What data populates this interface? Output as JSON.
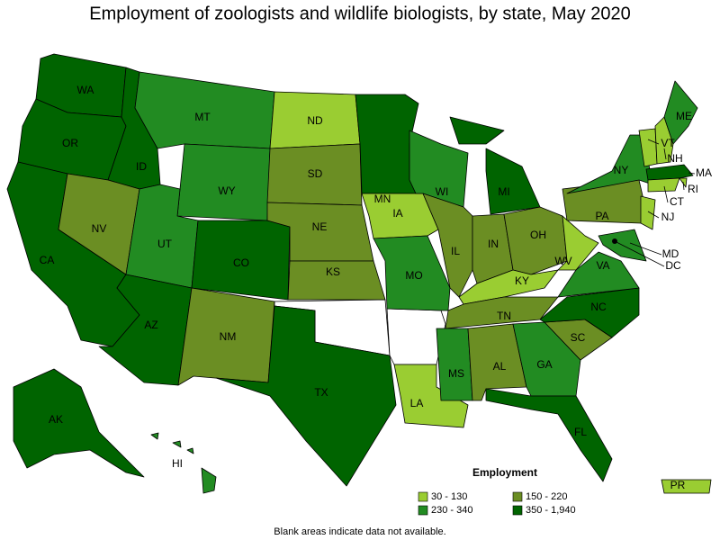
{
  "title": "Employment of zoologists and wildlife biologists, by state, May 2020",
  "legend": {
    "title": "Employment",
    "items": [
      {
        "label": "30 - 130",
        "color": "#9acd32"
      },
      {
        "label": "150 - 220",
        "color": "#6b8e23"
      },
      {
        "label": "230 - 340",
        "color": "#228b22"
      },
      {
        "label": "350 - 1,940",
        "color": "#006400"
      }
    ]
  },
  "states": [
    {
      "abbr": "WA",
      "color": "#006400"
    },
    {
      "abbr": "OR",
      "color": "#006400"
    },
    {
      "abbr": "CA",
      "color": "#006400"
    },
    {
      "abbr": "ID",
      "color": "#006400"
    },
    {
      "abbr": "NV",
      "color": "#6b8e23"
    },
    {
      "abbr": "MT",
      "color": "#228b22"
    },
    {
      "abbr": "WY",
      "color": "#228b22"
    },
    {
      "abbr": "UT",
      "color": "#228b22"
    },
    {
      "abbr": "AZ",
      "color": "#006400"
    },
    {
      "abbr": "CO",
      "color": "#006400"
    },
    {
      "abbr": "NM",
      "color": "#6b8e23"
    },
    {
      "abbr": "ND",
      "color": "#9acd32"
    },
    {
      "abbr": "SD",
      "color": "#6b8e23"
    },
    {
      "abbr": "NE",
      "color": "#6b8e23"
    },
    {
      "abbr": "KS",
      "color": "#6b8e23"
    },
    {
      "abbr": "TX",
      "color": "#006400"
    },
    {
      "abbr": "MN",
      "color": "#006400"
    },
    {
      "abbr": "IA",
      "color": "#9acd32"
    },
    {
      "abbr": "MO",
      "color": "#228b22"
    },
    {
      "abbr": "LA",
      "color": "#9acd32"
    },
    {
      "abbr": "WI",
      "color": "#228b22"
    },
    {
      "abbr": "IL",
      "color": "#6b8e23"
    },
    {
      "abbr": "MI",
      "color": "#006400"
    },
    {
      "abbr": "IN",
      "color": "#6b8e23"
    },
    {
      "abbr": "OH",
      "color": "#6b8e23"
    },
    {
      "abbr": "KY",
      "color": "#9acd32"
    },
    {
      "abbr": "TN",
      "color": "#6b8e23"
    },
    {
      "abbr": "MS",
      "color": "#228b22"
    },
    {
      "abbr": "AL",
      "color": "#6b8e23"
    },
    {
      "abbr": "GA",
      "color": "#228b22"
    },
    {
      "abbr": "FL",
      "color": "#006400"
    },
    {
      "abbr": "SC",
      "color": "#6b8e23"
    },
    {
      "abbr": "NC",
      "color": "#006400"
    },
    {
      "abbr": "VA",
      "color": "#228b22"
    },
    {
      "abbr": "WV",
      "color": "#9acd32"
    },
    {
      "abbr": "PA",
      "color": "#6b8e23"
    },
    {
      "abbr": "NY",
      "color": "#228b22"
    },
    {
      "abbr": "VT",
      "color": "#9acd32"
    },
    {
      "abbr": "NH",
      "color": "#9acd32"
    },
    {
      "abbr": "ME",
      "color": "#228b22"
    },
    {
      "abbr": "MA",
      "color": "#006400"
    },
    {
      "abbr": "RI",
      "color": "#9acd32"
    },
    {
      "abbr": "CT",
      "color": "#9acd32"
    },
    {
      "abbr": "NJ",
      "color": "#9acd32"
    },
    {
      "abbr": "MD",
      "color": "#228b22"
    },
    {
      "abbr": "DC",
      "color": "#006400"
    },
    {
      "abbr": "AK",
      "color": "#006400"
    },
    {
      "abbr": "HI",
      "color": "#228b22"
    },
    {
      "abbr": "PR",
      "color": "#9acd32"
    }
  ],
  "note": "Blank areas indicate data not available."
}
